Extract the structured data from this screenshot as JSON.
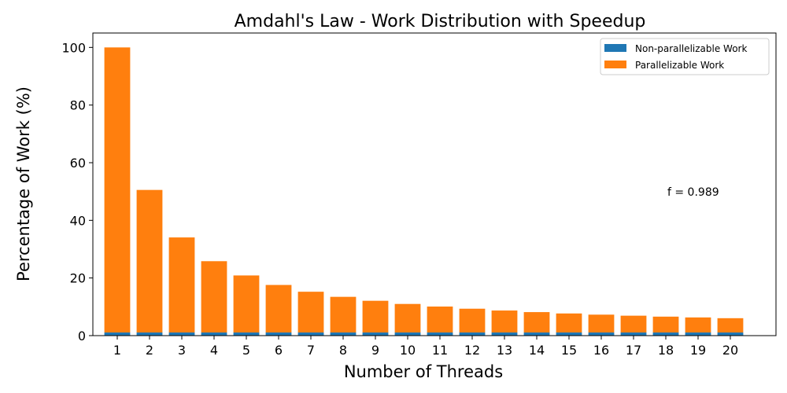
{
  "chart_data": {
    "type": "bar",
    "stacked": true,
    "title": "Amdahl's Law - Work Distribution with Speedup",
    "xlabel": "Number of Threads",
    "ylabel": "Percentage of Work (%)",
    "categories": [
      "1",
      "2",
      "3",
      "4",
      "5",
      "6",
      "7",
      "8",
      "9",
      "10",
      "11",
      "12",
      "13",
      "14",
      "15",
      "16",
      "17",
      "18",
      "19",
      "20"
    ],
    "yticks": [
      "0",
      "20",
      "40",
      "60",
      "80",
      "100"
    ],
    "ylim": [
      0,
      105
    ],
    "grid": false,
    "legend_position": "top-right",
    "annotation": "f = 0.989",
    "series": [
      {
        "name": "Non-parallelizable Work",
        "color": "#1f77b4",
        "values": [
          1.1,
          1.1,
          1.1,
          1.1,
          1.1,
          1.1,
          1.1,
          1.1,
          1.1,
          1.1,
          1.1,
          1.1,
          1.1,
          1.1,
          1.1,
          1.1,
          1.1,
          1.1,
          1.1,
          1.1
        ]
      },
      {
        "name": "Parallelizable Work",
        "color": "#ff7f0e",
        "values": [
          98.9,
          49.45,
          32.97,
          24.73,
          19.78,
          16.48,
          14.13,
          12.36,
          10.99,
          9.89,
          8.99,
          8.24,
          7.61,
          7.06,
          6.59,
          6.18,
          5.82,
          5.49,
          5.21,
          4.95
        ]
      }
    ]
  }
}
